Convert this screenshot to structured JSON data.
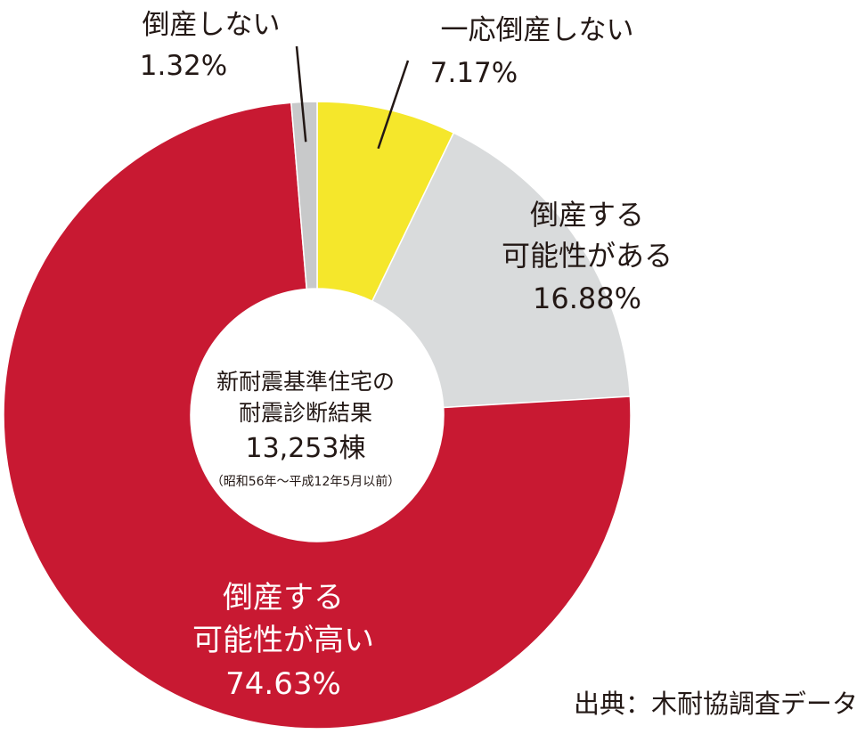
{
  "chart_data": {
    "type": "pie",
    "variant": "donut",
    "start_angle_deg": 0,
    "direction": "clockwise",
    "slices": [
      {
        "label_lines": [
          "一応倒産しない"
        ],
        "value_text": "7.17%",
        "value": 7.17,
        "color": "#f5e72b"
      },
      {
        "label_lines": [
          "倒産する",
          "可能性がある"
        ],
        "value_text": "16.88%",
        "value": 16.88,
        "color": "#d9dbdc"
      },
      {
        "label_lines": [
          "倒産する",
          "可能性が高い"
        ],
        "value_text": "74.63%",
        "value": 74.63,
        "color": "#c81932"
      },
      {
        "label_lines": [
          "倒産しない"
        ],
        "value_text": "1.32%",
        "value": 1.32,
        "color": "#c8c9ca"
      }
    ],
    "center_text": {
      "line1": "新耐震基準住宅の",
      "line2": "耐震診断結果",
      "line3": "13,253棟",
      "line4": "（昭和56年〜平成12年5月以前）"
    },
    "source": "出典：木耐協調査データ"
  }
}
